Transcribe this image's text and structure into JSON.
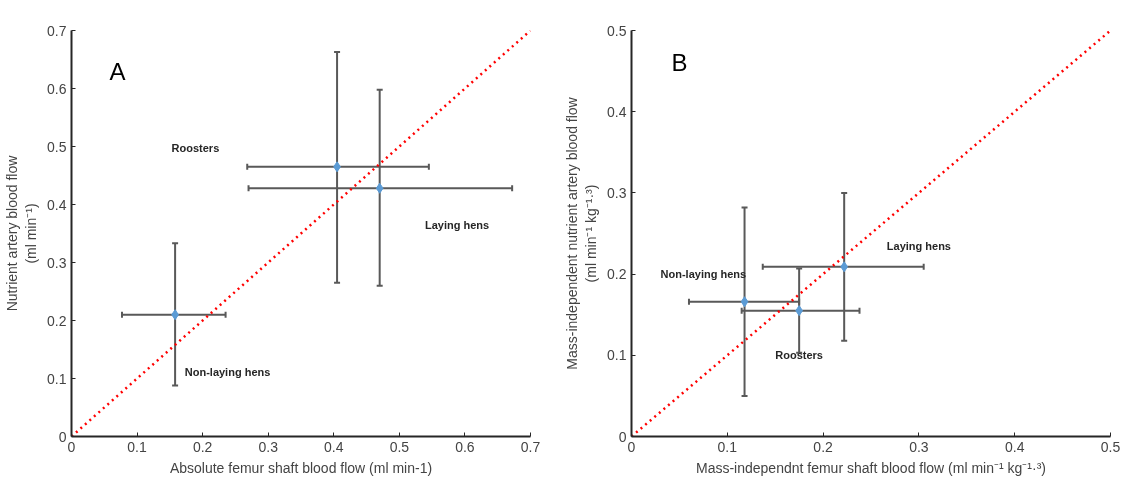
{
  "chart_data": [
    {
      "type": "scatter",
      "xlabel": "Absolute femur shaft blood flow (ml min-1)",
      "ylabel": "Nutrient artery blood flow\n(ml min⁻¹)",
      "xlim": [
        0,
        0.7
      ],
      "ylim": [
        0,
        0.7
      ],
      "xticks": [
        0,
        0.1,
        0.2,
        0.3,
        0.4,
        0.5,
        0.6,
        0.7
      ],
      "yticks": [
        0,
        0.1,
        0.2,
        0.3,
        0.4,
        0.5,
        0.6,
        0.7
      ],
      "grid": false,
      "marker": "diamond",
      "series": [
        {
          "color": "#5b9bd5",
          "x": [
            0.405,
            0.47,
            0.158
          ],
          "values": [
            0.465,
            0.428,
            0.21
          ],
          "errors": [
            [
              0.265,
              0.663
            ],
            [
              0.26,
              0.598
            ],
            [
              0.088,
              0.333
            ]
          ],
          "xerrors": [
            [
              0.268,
              0.545
            ],
            [
              0.27,
              0.672
            ],
            [
              0.077,
              0.235
            ]
          ]
        },
        {
          "type": "line",
          "color": "#ff0000",
          "line_style": "dotted",
          "marker": "none",
          "x": [
            0,
            0.7
          ],
          "values": [
            0,
            0.7
          ]
        }
      ],
      "annotations": [
        "A",
        "Roosters",
        "Laying hens",
        "Non-laying hens"
      ]
    },
    {
      "type": "scatter",
      "xlabel": "Mass-independnt femur shaft blood flow (ml min⁻¹ kg⁻¹·³)",
      "ylabel": "Mass-independent nutrient artery blood flow\n(ml min⁻¹ kg⁻¹·³)",
      "xlim": [
        0,
        0.5
      ],
      "ylim": [
        0,
        0.5
      ],
      "xticks": [
        0,
        0.1,
        0.2,
        0.3,
        0.4,
        0.5
      ],
      "yticks": [
        0,
        0.1,
        0.2,
        0.3,
        0.4,
        0.5
      ],
      "grid": false,
      "marker": "diamond",
      "series": [
        {
          "color": "#5b9bd5",
          "x": [
            0.118,
            0.175,
            0.222
          ],
          "values": [
            0.166,
            0.155,
            0.209
          ],
          "errors": [
            [
              0.05,
              0.282
            ],
            [
              0.103,
              0.207
            ],
            [
              0.118,
              0.3
            ]
          ],
          "xerrors": [
            [
              0.06,
              0.175
            ],
            [
              0.115,
              0.238
            ],
            [
              0.137,
              0.305
            ]
          ]
        },
        {
          "type": "line",
          "color": "#ff0000",
          "line_style": "dotted",
          "marker": "none",
          "x": [
            0,
            0.5
          ],
          "values": [
            0,
            0.5
          ]
        }
      ],
      "annotations": [
        "B",
        "Non-laying hens",
        "Laying hens",
        "Roosters"
      ]
    }
  ]
}
